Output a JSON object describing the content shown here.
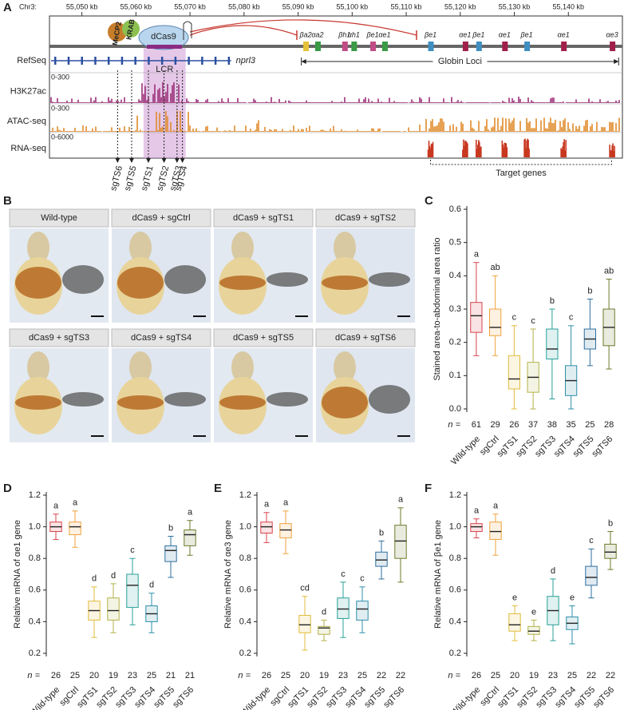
{
  "panels": [
    "A",
    "B",
    "C",
    "D",
    "E",
    "F"
  ],
  "genome": {
    "chrom_label": "Chr3:",
    "xlim": [
      55044,
      55150
    ],
    "xticks": [
      {
        "value": 55050,
        "label": "55,050 kb"
      },
      {
        "value": 55060,
        "label": "55,060 kb"
      },
      {
        "value": 55070,
        "label": "55,070 kb"
      },
      {
        "value": 55080,
        "label": "55,080 kb"
      },
      {
        "value": 55090,
        "label": "55,090 kb"
      },
      {
        "value": 55100,
        "label": "55,100 kb"
      },
      {
        "value": 55110,
        "label": "55,110 kb"
      },
      {
        "value": 55120,
        "label": "55,120 kb"
      },
      {
        "value": 55130,
        "label": "55,130 kb"
      },
      {
        "value": 55140,
        "label": "55,140 kb"
      }
    ],
    "complex": {
      "mecp2": "MeCP2",
      "krab": "KRAB",
      "dcas9": "dCas9"
    },
    "lcr": {
      "label": "LCR",
      "range": [
        55061.4,
        55069.2
      ]
    },
    "nprl3": {
      "label": "nprl3",
      "range": [
        55044,
        55077.6
      ]
    },
    "globin_loci": {
      "label": "Globin Loci",
      "range": [
        55090.6,
        55149.3
      ]
    },
    "target_genes": {
      "label": "Target genes",
      "range": [
        55114.5,
        55148
      ]
    },
    "genes": [
      {
        "label": "βa2",
        "kb": 55091.4,
        "color": "#e6c23a"
      },
      {
        "label": "αa2",
        "kb": 55093.6,
        "color": "#3a9a46"
      },
      {
        "label": "βh1",
        "kb": 55098.6,
        "color": "#c04d86"
      },
      {
        "label": "αh1",
        "kb": 55100.3,
        "color": "#3a9a46"
      },
      {
        "label": "βe1",
        "kb": 55103.8,
        "color": "#c04d86"
      },
      {
        "label": "αe1",
        "kb": 55106.0,
        "color": "#3a9a46"
      },
      {
        "label": "βe1",
        "kb": 55114.5,
        "color": "#3f8fc0"
      },
      {
        "label": "αe1",
        "kb": 55120.9,
        "color": "#a0204a"
      },
      {
        "label": "βe1",
        "kb": 55123.4,
        "color": "#3f8fc0"
      },
      {
        "label": "αe1",
        "kb": 55128.2,
        "color": "#a0204a"
      },
      {
        "label": "βe1",
        "kb": 55132.3,
        "color": "#3f8fc0"
      },
      {
        "label": "αe1",
        "kb": 55139.1,
        "color": "#a0204a"
      },
      {
        "label": "αe3",
        "kb": 55148.1,
        "color": "#a0204a"
      }
    ],
    "tracks": [
      {
        "name": "RefSeq"
      },
      {
        "name": "H3K27ac",
        "range": "0-300",
        "color": "#9b2f78"
      },
      {
        "name": "ATAC-seq",
        "range": "0-300",
        "color": "#e08a2a"
      },
      {
        "name": "RNA-seq",
        "range": "0-6000",
        "color": "#c8371f"
      }
    ],
    "sgrnas": [
      {
        "label": "sgTS6",
        "kb": 55056.6
      },
      {
        "label": "sgTS5",
        "kb": 55059.2
      },
      {
        "label": "sgTS1",
        "kb": 55062.3
      },
      {
        "label": "sgTS2",
        "kb": 55065.2
      },
      {
        "label": "sgTS3",
        "kb": 55067.6
      },
      {
        "label": "sgTS4",
        "kb": 55068.6
      }
    ]
  },
  "images": [
    "Wild-type",
    "dCas9 + sgCtrl",
    "dCas9 + sgTS1",
    "dCas9 + sgTS2",
    "dCas9 + sgTS3",
    "dCas9 + sgTS4",
    "dCas9 + sgTS5",
    "dCas9 + sgTS6"
  ],
  "chart_data": [
    {
      "type": "box",
      "panel": "C",
      "ylabel": "Stained area-to-abdominal area ratio",
      "categories": [
        "Wild-type",
        "sgCtrl",
        "sgTS1",
        "sgTS2",
        "sgTS3",
        "sgTS4",
        "sgTS5",
        "sgTS6"
      ],
      "colors": [
        "#d9434b",
        "#f0a23c",
        "#e2bd3c",
        "#b3b24a",
        "#2aa198",
        "#2e8fa8",
        "#2d6f9f",
        "#6b7a2a"
      ],
      "boxes": [
        {
          "min": 0.16,
          "q1": 0.23,
          "median": 0.28,
          "q3": 0.32,
          "max": 0.44
        },
        {
          "min": 0.16,
          "q1": 0.22,
          "median": 0.245,
          "q3": 0.3,
          "max": 0.4
        },
        {
          "min": 0.0,
          "q1": 0.06,
          "median": 0.09,
          "q3": 0.16,
          "max": 0.25
        },
        {
          "min": 0.0,
          "q1": 0.05,
          "median": 0.095,
          "q3": 0.14,
          "max": 0.24
        },
        {
          "min": 0.03,
          "q1": 0.15,
          "median": 0.18,
          "q3": 0.24,
          "max": 0.3
        },
        {
          "min": 0.0,
          "q1": 0.04,
          "median": 0.085,
          "q3": 0.13,
          "max": 0.25
        },
        {
          "min": 0.13,
          "q1": 0.18,
          "median": 0.21,
          "q3": 0.24,
          "max": 0.33
        },
        {
          "min": 0.12,
          "q1": 0.19,
          "median": 0.245,
          "q3": 0.3,
          "max": 0.39
        }
      ],
      "letters": [
        "a",
        "ab",
        "c",
        "c",
        "b",
        "c",
        "b",
        "ab"
      ],
      "n_label": "n =",
      "n": [
        61,
        29,
        26,
        37,
        38,
        35,
        25,
        28
      ],
      "ylim": [
        0,
        0.6
      ],
      "yticks": [
        {
          "value": 0,
          "label": "0.0"
        },
        0.1,
        0.2,
        0.3,
        0.4,
        0.5,
        0.6
      ]
    },
    {
      "type": "box",
      "panel": "D",
      "ylabel": "Relative mRNA of αe1 gene",
      "categories": [
        "Wild-type",
        "sgCtrl",
        "sgTS1",
        "sgTS2",
        "sgTS3",
        "sgTS4",
        "sgTS5",
        "sgTS6"
      ],
      "colors": [
        "#d9434b",
        "#f0a23c",
        "#e2bd3c",
        "#b3b24a",
        "#2aa198",
        "#2e8fa8",
        "#2d6f9f",
        "#6b7a2a"
      ],
      "boxes": [
        {
          "min": 0.92,
          "q1": 0.97,
          "median": 1.0,
          "q3": 1.03,
          "max": 1.08
        },
        {
          "min": 0.87,
          "q1": 0.95,
          "median": 1.0,
          "q3": 1.03,
          "max": 1.1
        },
        {
          "min": 0.3,
          "q1": 0.41,
          "median": 0.47,
          "q3": 0.53,
          "max": 0.62
        },
        {
          "min": 0.33,
          "q1": 0.41,
          "median": 0.47,
          "q3": 0.55,
          "max": 0.64
        },
        {
          "min": 0.38,
          "q1": 0.49,
          "median": 0.63,
          "q3": 0.7,
          "max": 0.8
        },
        {
          "min": 0.33,
          "q1": 0.4,
          "median": 0.45,
          "q3": 0.5,
          "max": 0.58
        },
        {
          "min": 0.68,
          "q1": 0.78,
          "median": 0.85,
          "q3": 0.88,
          "max": 0.94
        },
        {
          "min": 0.82,
          "q1": 0.88,
          "median": 0.95,
          "q3": 0.98,
          "max": 1.04
        }
      ],
      "letters": [
        "a",
        "a",
        "d",
        "d",
        "c",
        "d",
        "b",
        "a"
      ],
      "n_label": "n =",
      "n": [
        26,
        25,
        20,
        19,
        23,
        25,
        21,
        21
      ],
      "ylim": [
        0.2,
        1.2
      ],
      "yticks": [
        0.2,
        0.4,
        0.6,
        0.8,
        {
          "value": 1,
          "label": "1.0"
        },
        1.2
      ]
    },
    {
      "type": "box",
      "panel": "E",
      "ylabel": "Relative mRNA of αe3 gene",
      "categories": [
        "Wild-type",
        "sgCtrl",
        "sgTS1",
        "sgTS2",
        "sgTS3",
        "sgTS4",
        "sgTS5",
        "sgTS6"
      ],
      "colors": [
        "#d9434b",
        "#f0a23c",
        "#e2bd3c",
        "#b3b24a",
        "#2aa198",
        "#2e8fa8",
        "#2d6f9f",
        "#6b7a2a"
      ],
      "boxes": [
        {
          "min": 0.9,
          "q1": 0.96,
          "median": 1.0,
          "q3": 1.03,
          "max": 1.09
        },
        {
          "min": 0.83,
          "q1": 0.93,
          "median": 0.98,
          "q3": 1.02,
          "max": 1.1
        },
        {
          "min": 0.22,
          "q1": 0.33,
          "median": 0.38,
          "q3": 0.44,
          "max": 0.56
        },
        {
          "min": 0.28,
          "q1": 0.32,
          "median": 0.36,
          "q3": 0.37,
          "max": 0.41
        },
        {
          "min": 0.3,
          "q1": 0.42,
          "median": 0.48,
          "q3": 0.55,
          "max": 0.65
        },
        {
          "min": 0.33,
          "q1": 0.41,
          "median": 0.48,
          "q3": 0.53,
          "max": 0.62
        },
        {
          "min": 0.67,
          "q1": 0.75,
          "median": 0.79,
          "q3": 0.84,
          "max": 0.91
        },
        {
          "min": 0.65,
          "q1": 0.8,
          "median": 0.91,
          "q3": 1.01,
          "max": 1.12
        }
      ],
      "letters": [
        "a",
        "a",
        "cd",
        "d",
        "c",
        "c",
        "b",
        "a"
      ],
      "n_label": "n =",
      "n": [
        26,
        25,
        20,
        19,
        23,
        25,
        22,
        22
      ],
      "ylim": [
        0.2,
        1.2
      ],
      "yticks": [
        0.2,
        0.4,
        0.6,
        0.8,
        {
          "value": 1,
          "label": "1.0"
        },
        1.2
      ]
    },
    {
      "type": "box",
      "panel": "F",
      "ylabel": "Relative mRNA of βe1 gene",
      "categories": [
        "Wild-type",
        "sgCtrl",
        "sgTS1",
        "sgTS2",
        "sgTS3",
        "sgTS4",
        "sgTS5",
        "sgTS6"
      ],
      "colors": [
        "#d9434b",
        "#f0a23c",
        "#e2bd3c",
        "#b3b24a",
        "#2aa198",
        "#2e8fa8",
        "#2d6f9f",
        "#6b7a2a"
      ],
      "boxes": [
        {
          "min": 0.93,
          "q1": 0.97,
          "median": 1.0,
          "q3": 1.02,
          "max": 1.05
        },
        {
          "min": 0.82,
          "q1": 0.92,
          "median": 0.97,
          "q3": 1.03,
          "max": 1.08
        },
        {
          "min": 0.28,
          "q1": 0.34,
          "median": 0.38,
          "q3": 0.45,
          "max": 0.5
        },
        {
          "min": 0.28,
          "q1": 0.32,
          "median": 0.34,
          "q3": 0.37,
          "max": 0.41
        },
        {
          "min": 0.28,
          "q1": 0.38,
          "median": 0.47,
          "q3": 0.56,
          "max": 0.67
        },
        {
          "min": 0.26,
          "q1": 0.35,
          "median": 0.39,
          "q3": 0.43,
          "max": 0.5
        },
        {
          "min": 0.55,
          "q1": 0.63,
          "median": 0.68,
          "q3": 0.75,
          "max": 0.86
        },
        {
          "min": 0.73,
          "q1": 0.8,
          "median": 0.84,
          "q3": 0.89,
          "max": 0.97
        }
      ],
      "letters": [
        "a",
        "a",
        "e",
        "e",
        "d",
        "e",
        "c",
        "b"
      ],
      "n_label": "n =",
      "n": [
        26,
        25,
        20,
        19,
        23,
        25,
        22,
        22
      ],
      "ylim": [
        0.2,
        1.2
      ],
      "yticks": [
        0.2,
        0.4,
        0.6,
        0.8,
        {
          "value": 1,
          "label": "1.0"
        },
        1.2
      ]
    }
  ]
}
